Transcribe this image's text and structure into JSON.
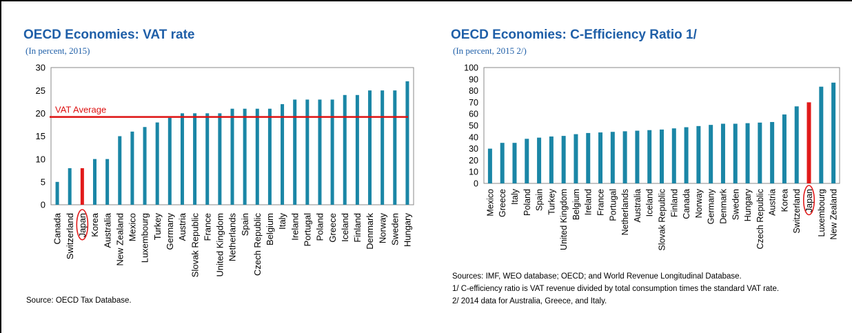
{
  "chart_data": [
    {
      "type": "bar",
      "title": "OECD Economies: VAT rate",
      "subtitle": "(In percent, 2015)",
      "categories": [
        "Canada",
        "Switzerland",
        "Japan",
        "Korea",
        "Australia",
        "New Zealand",
        "Mexico",
        "Luxembourg",
        "Turkey",
        "Germany",
        "Austria",
        "Slovak Republic",
        "France",
        "United Kingdom",
        "Netherlands",
        "Spain",
        "Czech Republic",
        "Belgium",
        "Italy",
        "Ireland",
        "Portugal",
        "Poland",
        "Greece",
        "Iceland",
        "Finland",
        "Denmark",
        "Norway",
        "Sweden",
        "Hungary"
      ],
      "values": [
        5,
        8,
        8,
        10,
        10,
        15,
        16,
        17,
        18,
        19,
        20,
        20,
        20,
        20,
        21,
        21,
        21,
        21,
        22,
        23,
        23,
        23,
        23,
        24,
        24,
        25,
        25,
        25,
        27
      ],
      "highlight": "Japan",
      "ylim": [
        0,
        30
      ],
      "yticks": [
        0,
        5,
        10,
        15,
        20,
        25,
        30
      ],
      "grid": false,
      "reference_line": {
        "label": "VAT Average",
        "value": 19.2
      },
      "source": "Source: OECD Tax Database."
    },
    {
      "type": "bar",
      "title": "OECD Economies: C-Efficiency Ratio 1/",
      "subtitle": "(In percent, 2015 2/)",
      "categories": [
        "Mexico",
        "Greece",
        "Italy",
        "Poland",
        "Spain",
        "Turkey",
        "United Kingdom",
        "Belgium",
        "Ireland",
        "France",
        "Portugal",
        "Netherlands",
        "Australia",
        "Iceland",
        "Slovak Republic",
        "Finland",
        "Canada",
        "Norway",
        "Germany",
        "Denmark",
        "Sweden",
        "Hungary",
        "Czech Republic",
        "Austria",
        "Korea",
        "Switzerland",
        "Japan",
        "Luxembourg",
        "New Zealand"
      ],
      "values": [
        30,
        35,
        35,
        38.5,
        39.5,
        40.5,
        41,
        42.5,
        43.5,
        44,
        44.5,
        45,
        45.5,
        46,
        46.5,
        47.5,
        48.5,
        49.5,
        50.5,
        51.5,
        51.5,
        52,
        52.5,
        53,
        59.5,
        66.5,
        70,
        83.5,
        87
      ],
      "highlight": "Japan",
      "ylim": [
        0,
        100
      ],
      "yticks": [
        0,
        10,
        20,
        30,
        40,
        50,
        60,
        70,
        80,
        90,
        100
      ],
      "grid": false,
      "notes": [
        "Sources: IMF, WEO database; OECD; and World Revenue Longitudinal Database.",
        "1/ C-efficiency ratio is VAT revenue divided by total consumption times the standard VAT rate.",
        "2/ 2014 data for Australia, Greece, and Italy."
      ]
    }
  ],
  "colors": {
    "bar": "#1a86a6",
    "highlight": "#e11a1a",
    "title": "#1f5fa8",
    "reference_line": "#dd1111",
    "axis": "#888888"
  }
}
